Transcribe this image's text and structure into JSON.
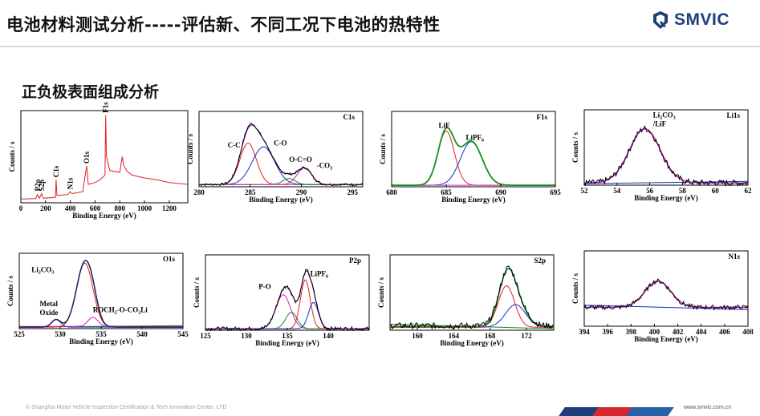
{
  "header": {
    "title": "电池材料测试分析-----评估新、不同工况下电池的热特性",
    "logo_text": "SMVIC"
  },
  "section_title": "正负极表面组成分析",
  "footer": {
    "copyright": "© Shanghai Motor Vehicle Inspection Certification & Tech Innovation Center, LTD",
    "website": "www.smvic.com.cn"
  },
  "colors": {
    "brand": "#1c3f7a",
    "stripe_red": "#d8282f",
    "stripe_blue": "#2860a8",
    "stripe_navy": "#1c3f7a"
  },
  "chart_data": [
    {
      "id": "survey",
      "type": "line",
      "xlabel": "Binding Energy (eV)",
      "ylabel": "Counts / s",
      "xlim": [
        0,
        1350
      ],
      "xticks": [
        0,
        200,
        400,
        600,
        800,
        1000,
        1200
      ],
      "labels": [
        {
          "text": "P2p",
          "x": 135,
          "rot": true
        },
        {
          "text": "S2p",
          "x": 168,
          "rot": true
        },
        {
          "text": "C1s",
          "x": 285,
          "rot": true
        },
        {
          "text": "N1s",
          "x": 400,
          "rot": true
        },
        {
          "text": "O1s",
          "x": 532,
          "rot": true
        },
        {
          "text": "F1s",
          "x": 686,
          "rot": true
        }
      ],
      "series": [
        {
          "color": "#e32020",
          "points": [
            [
              0,
              0.04
            ],
            [
              120,
              0.045
            ],
            [
              134,
              0.09
            ],
            [
              150,
              0.05
            ],
            [
              168,
              0.1
            ],
            [
              180,
              0.05
            ],
            [
              280,
              0.06
            ],
            [
              285,
              0.25
            ],
            [
              292,
              0.08
            ],
            [
              380,
              0.09
            ],
            [
              400,
              0.12
            ],
            [
              415,
              0.1
            ],
            [
              500,
              0.12
            ],
            [
              532,
              0.4
            ],
            [
              545,
              0.2
            ],
            [
              600,
              0.22
            ],
            [
              640,
              0.25
            ],
            [
              680,
              0.3
            ],
            [
              686,
              0.95
            ],
            [
              692,
              0.5
            ],
            [
              720,
              0.35
            ],
            [
              800,
              0.33
            ],
            [
              820,
              0.5
            ],
            [
              833,
              0.4
            ],
            [
              860,
              0.34
            ],
            [
              900,
              0.3
            ],
            [
              1000,
              0.27
            ],
            [
              1100,
              0.25
            ],
            [
              1200,
              0.22
            ],
            [
              1350,
              0.2
            ]
          ]
        }
      ]
    },
    {
      "id": "c1s",
      "type": "line",
      "title": "C1s",
      "xlabel": "Binding Energy (eV)",
      "ylabel": "Counts / s",
      "xlim": [
        280,
        296
      ],
      "xticks": [
        280,
        285,
        290,
        295
      ],
      "labels": [
        {
          "text": "C-C",
          "x": 282.8,
          "y": 0.52
        },
        {
          "text": "C-O",
          "x": 287.3,
          "y": 0.55
        },
        {
          "text": "O-C=O",
          "x": 288.8,
          "y": 0.33
        },
        {
          "text": "-CO",
          "sub": "3",
          "x": 291.5,
          "y": 0.25
        }
      ],
      "series": [
        {
          "color": "#7a00b0",
          "peaks": [
            [
              284.8,
              0.55,
              0.8
            ],
            [
              286.3,
              0.5,
              1.1
            ],
            [
              288.8,
              0.08,
              0.6
            ],
            [
              290.3,
              0.22,
              0.7
            ]
          ],
          "baseline": 0.03
        },
        {
          "color": "#e32020",
          "peaks": [
            [
              284.8,
              0.55,
              0.8
            ]
          ],
          "baseline": 0.03
        },
        {
          "color": "#1030c0",
          "peaks": [
            [
              286.3,
              0.5,
              1.1
            ]
          ],
          "baseline": 0.03
        },
        {
          "color": "#109020",
          "peaks": [
            [
              288.8,
              0.08,
              0.6
            ]
          ],
          "baseline": 0.03
        },
        {
          "color": "#d020c0",
          "peaks": [
            [
              290.3,
              0.22,
              0.7
            ]
          ],
          "baseline": 0.03
        },
        {
          "color": "#000000",
          "peaks": [
            [
              284.8,
              0.57,
              0.8
            ],
            [
              286.3,
              0.5,
              1.1
            ],
            [
              288.8,
              0.08,
              0.6
            ],
            [
              290.3,
              0.22,
              0.7
            ]
          ],
          "baseline": 0.03,
          "noise": 0.015
        }
      ]
    },
    {
      "id": "f1s",
      "type": "line",
      "title": "F1s",
      "xlabel": "Binding Energy (eV)",
      "ylabel": "Counts / s",
      "xlim": [
        680,
        695
      ],
      "xticks": [
        680,
        685,
        690,
        695
      ],
      "labels": [
        {
          "text": "LiF",
          "x": 684.3,
          "y": 0.78
        },
        {
          "text": "LiPF",
          "sub": "6",
          "x": 686.8,
          "y": 0.62
        }
      ],
      "series": [
        {
          "color": "#e32020",
          "peaks": [
            [
              685.0,
              0.72,
              0.75
            ]
          ],
          "baseline": 0.02
        },
        {
          "color": "#1030c0",
          "peaks": [
            [
              687.3,
              0.58,
              1.0
            ]
          ],
          "baseline": 0.02
        },
        {
          "color": "#d020c0",
          "peaks": [],
          "baseline": 0.02
        },
        {
          "color": "#109020",
          "peaks": [
            [
              685.0,
              0.72,
              0.75
            ],
            [
              687.3,
              0.58,
              1.0
            ]
          ],
          "baseline": 0.02,
          "width": 1.8
        }
      ]
    },
    {
      "id": "li1s",
      "type": "line",
      "title": "Li1s",
      "xlabel": "Binding Energy (eV)",
      "ylabel": "Counts / s",
      "xlim": [
        52,
        62
      ],
      "xticks": [
        52,
        54,
        56,
        58,
        60,
        62
      ],
      "labels": [
        {
          "text": "Li",
          "sub": "2",
          "tail": "CO",
          "tailsub": "3",
          "x": 56.2,
          "y": 0.9
        },
        {
          "text": "/LiF",
          "x": 56.2,
          "y": 0.78
        }
      ],
      "series": [
        {
          "color": "#1030c0",
          "line": [
            [
              52,
              0.02
            ],
            [
              62,
              0.05
            ]
          ]
        },
        {
          "color": "#d020c0",
          "peaks": [
            [
              55.7,
              0.72,
              0.95
            ]
          ],
          "baseline": 0.03,
          "width": 1.5
        },
        {
          "color": "#000000",
          "peaks": [
            [
              55.7,
              0.72,
              0.95
            ]
          ],
          "baseline": 0.03,
          "noise": 0.04
        }
      ]
    },
    {
      "id": "o1s",
      "type": "line",
      "title": "O1s",
      "xlabel": "Binding Energy (eV)",
      "ylabel": "Counts / s",
      "xlim": [
        525,
        545
      ],
      "xticks": [
        525,
        530,
        535,
        540,
        545
      ],
      "labels": [
        {
          "text": "Li",
          "sub": "2",
          "tail": "CO",
          "tailsub": "3",
          "x": 526.5,
          "y": 0.75
        },
        {
          "text": "Metal",
          "x": 527.5,
          "y": 0.3
        },
        {
          "text": "Oxide",
          "x": 527.5,
          "y": 0.18
        },
        {
          "text": "ROCH",
          "sub": "2",
          "tail": "-O-CO",
          "tailsub": "2",
          "tail2": "Li",
          "x": 534.0,
          "y": 0.22
        }
      ],
      "series": [
        {
          "color": "#109020",
          "line": [
            [
              525,
              0.02
            ],
            [
              545,
              0.04
            ]
          ]
        },
        {
          "color": "#1030c0",
          "peaks": [
            [
              529.5,
              0.1,
              0.55
            ]
          ],
          "baseline": 0.02
        },
        {
          "color": "#d020c0",
          "peaks": [
            [
              534.0,
              0.12,
              0.6
            ]
          ],
          "baseline": 0.03
        },
        {
          "color": "#e32020",
          "peaks": [
            [
              533.0,
              0.85,
              1.0
            ]
          ],
          "baseline": 0.02
        },
        {
          "color": "#1a1a60",
          "peaks": [
            [
              529.5,
              0.1,
              0.55
            ],
            [
              533.0,
              0.85,
              1.0
            ],
            [
              534.0,
              0.12,
              0.6
            ]
          ],
          "baseline": 0.02,
          "width": 1.5
        }
      ]
    },
    {
      "id": "p2p",
      "type": "line",
      "title": "P2p",
      "xlabel": "Binding Energy (eV)",
      "ylabel": "Counts / s",
      "xlim": [
        125,
        145
      ],
      "xticks": [
        125,
        130,
        135,
        140
      ],
      "labels": [
        {
          "text": "P-O",
          "x": 131.5,
          "y": 0.55
        },
        {
          "text": "LiPF",
          "sub": "6",
          "x": 137.8,
          "y": 0.72
        }
      ],
      "series": [
        {
          "color": "#d020c0",
          "peaks": [
            [
              134.5,
              0.45,
              0.9
            ]
          ],
          "baseline": 0.02
        },
        {
          "color": "#109020",
          "peaks": [
            [
              135.5,
              0.22,
              0.7
            ]
          ],
          "baseline": 0.02
        },
        {
          "color": "#e32020",
          "peaks": [
            [
              137.2,
              0.65,
              0.6
            ]
          ],
          "baseline": 0.02
        },
        {
          "color": "#1030c0",
          "peaks": [
            [
              138.2,
              0.35,
              0.6
            ]
          ],
          "baseline": 0.02
        },
        {
          "color": "#7a00b0",
          "peaks": [
            [
              134.5,
              0.45,
              0.9
            ],
            [
              135.5,
              0.22,
              0.7
            ],
            [
              137.2,
              0.65,
              0.6
            ],
            [
              138.2,
              0.35,
              0.6
            ]
          ],
          "baseline": 0.02
        },
        {
          "color": "#000000",
          "peaks": [
            [
              134.5,
              0.45,
              0.9
            ],
            [
              135.5,
              0.22,
              0.7
            ],
            [
              137.2,
              0.65,
              0.6
            ],
            [
              138.2,
              0.35,
              0.6
            ]
          ],
          "baseline": 0.02,
          "noise": 0.025
        }
      ]
    },
    {
      "id": "s2p",
      "type": "line",
      "title": "S2p",
      "xlabel": "Binding Energy (eV)",
      "ylabel": "Counts / s",
      "xlim": [
        157,
        175
      ],
      "xticks": [
        160,
        164,
        168,
        172
      ],
      "labels": [],
      "series": [
        {
          "color": "#109020",
          "line": [
            [
              157,
              0.08
            ],
            [
              175,
              0.02
            ]
          ]
        },
        {
          "color": "#1030c0",
          "peaks": [
            [
              170.8,
              0.3,
              1.1
            ]
          ],
          "baseline": 0.04
        },
        {
          "color": "#e32020",
          "peaks": [
            [
              169.8,
              0.55,
              0.9
            ]
          ],
          "baseline": 0.04
        },
        {
          "color": "#109020",
          "peaks": [
            [
              169.8,
              0.55,
              0.9
            ],
            [
              170.8,
              0.3,
              1.1
            ]
          ],
          "baseline": 0.05,
          "width": 1.5
        },
        {
          "color": "#000000",
          "peaks": [
            [
              169.8,
              0.55,
              0.9
            ],
            [
              170.8,
              0.3,
              1.1
            ]
          ],
          "baseline": 0.06,
          "noise": 0.04
        }
      ]
    },
    {
      "id": "n1s",
      "type": "line",
      "title": "N1s",
      "xlabel": "Binding Energy (eV)",
      "ylabel": "Counts / s",
      "xlim": [
        394,
        408
      ],
      "xticks": [
        394,
        396,
        398,
        400,
        402,
        404,
        406,
        408
      ],
      "labels": [],
      "series": [
        {
          "color": "#1030c0",
          "line": [
            [
              394,
              0.28
            ],
            [
              408,
              0.22
            ]
          ]
        },
        {
          "color": "#d020c0",
          "peaks": [
            [
              400.3,
              0.35,
              1.1
            ]
          ],
          "baseline": 0.25,
          "width": 1.5
        },
        {
          "color": "#000000",
          "peaks": [
            [
              400.3,
              0.35,
              1.1
            ]
          ],
          "baseline": 0.25,
          "noise": 0.03
        }
      ]
    }
  ]
}
